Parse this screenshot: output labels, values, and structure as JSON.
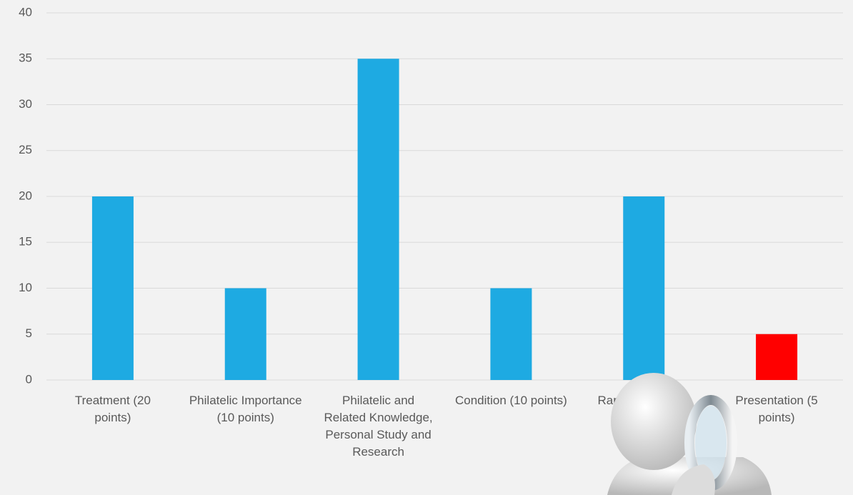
{
  "chart_data": {
    "type": "bar",
    "categories": [
      "Treatment (20 points)",
      "Philatelic Importance (10 points)",
      "Philatelic and Related Knowledge, Personal Study and Research",
      "Condition (10 points)",
      "Rarity (20 points)",
      "Presentation (5 points)"
    ],
    "values": [
      20,
      10,
      35,
      10,
      20,
      5
    ],
    "colors": [
      "#1eaae2",
      "#1eaae2",
      "#1eaae2",
      "#1eaae2",
      "#1eaae2",
      "#ff0000"
    ],
    "ylim": [
      0,
      40
    ],
    "yticks": [
      0,
      5,
      10,
      15,
      20,
      25,
      30,
      35,
      40
    ],
    "grid": true
  }
}
